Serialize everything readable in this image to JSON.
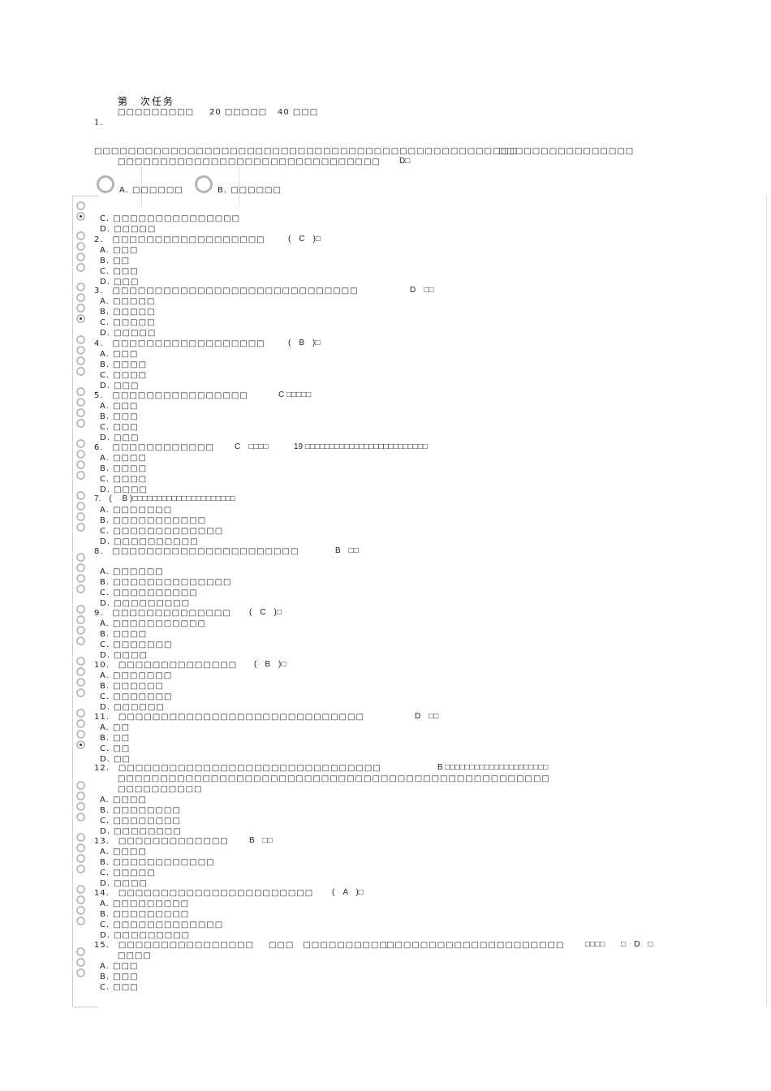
{
  "header": {
    "title": "第　次任务",
    "subtitle": "□□□□□□□□□",
    "total_questions": "20 □□□□□",
    "total_score": "40 □□□",
    "q1_number": "1."
  },
  "q1": {
    "text_line1": "□□□□□□□□□□□□□□□□□□□□□□□□□□□□□□□□□□□□□□□□□□□□□□□□□□",
    "text_line1b": "□□□□□□□□□□□□□□□□",
    "text_line2": "□□□□□□□□□□□□□□□□□□□□□□□□□□□□□□□",
    "answer": "D□",
    "opt_a": "A. □□□□□□",
    "opt_b": "B. □□□□□□",
    "opt_c": "C. □□□□□□□□□□□□□□□",
    "opt_d": "D. □□□□□"
  },
  "q2": {
    "text": "2.　□□□□□□□□□□□□□□□□□□",
    "answer": "(　C　)□",
    "a": "A. □□□",
    "b": "B. □□",
    "c": "C. □□□",
    "d": "D. □□□"
  },
  "q3": {
    "text": "3.　□□□□□□□□□□□□□□□□□□□□□□□□□□□□□",
    "answer": "D　□□",
    "a": "A. □□□□□",
    "b": "B. □□□□□",
    "c": "C. □□□□□",
    "d": "D. □□□□□"
  },
  "q4": {
    "text": "4.　□□□□□□□□□□□□□□□□□□",
    "answer": "(　B　)□",
    "a": "A. □□□",
    "b": "B. □□□□",
    "c": "C. □□□□",
    "d": "D. □□□"
  },
  "q5": {
    "text": "5.　□□□□□□□□□□□□□□□□",
    "answer": "C □□□□□",
    "a": "A. □□□",
    "b": "B. □□□",
    "c": "C. □□□",
    "d": "D. □□□"
  },
  "q6": {
    "text": "6.　□□□□□□□□□□□□",
    "answer": "C　□□□□",
    "extra": "19 □□□□□□□□□□□□□□□□□□□□□□□□□",
    "a": "A. □□□□",
    "b": "B. □□□□",
    "c": "C. □□□□",
    "d": "D. □□□□"
  },
  "q7": {
    "text": "7.　(　 B )□□□□□□□□□□□□□□□□□□□□□",
    "a": "A. □□□□□□□",
    "b": "B. □□□□□□□□□□□",
    "c": "C. □□□□□□□□□□□□□",
    "d": "D. □□□□□□□□□□"
  },
  "q8": {
    "text": "8.　□□□□□□□□□□□□□□□□□□□□□□",
    "answer": "B　□□",
    "a": "A. □□□□□□",
    "b": "B. □□□□□□□□□□□□□□",
    "c": "C. □□□□□□□□□□",
    "d": "D. □□□□□□□□□"
  },
  "q9": {
    "text": "9.　□□□□□□□□□□□□□□",
    "answer": "(　C　)□",
    "a": "A. □□□□□□□□□□□",
    "b": "B. □□□□",
    "c": "C. □□□□□□□",
    "d": "D. □□□□"
  },
  "q10": {
    "text": "10.　□□□□□□□□□□□□□□",
    "answer": "(　B　)□",
    "a": "A. □□□□□□□",
    "b": "B. □□□□□□",
    "c": "C. □□□□□□□",
    "d": "D. □□□□□□"
  },
  "q11": {
    "text": "11.　□□□□□□□□□□□□□□□□□□□□□□□□□□□□□",
    "answer": "D　□□",
    "a": "A. □□",
    "b": "B. □□",
    "c": "C. □□",
    "d": "D. □□"
  },
  "q12": {
    "text": "12.　□□□□□□□□□□□□□□□□□□□□□□□□□□□□□□□",
    "answer": "B □□□□□□□□□□□□□□□□□□□□□",
    "line2": "□□□□□□□□□□□□□□□□□□□□□□□□□□□□□□□□□□□□□□□□□□□□□□□□□□□",
    "line3": "□□□□□□□□□□",
    "a": "A. □□□□",
    "b": "B. □□□□□□□□",
    "c": "C. □□□□□□□□",
    "d": "D. □□□□□□□□"
  },
  "q13": {
    "text": "13.　□□□□□□□□□□□□□",
    "answer": "B　□□",
    "a": "A. □□□□",
    "b": "B. □□□□□□□□□□□□",
    "c": "C. □□□□□",
    "d": "D. □□□□"
  },
  "q14": {
    "text": "14.　□□□□□□□□□□□□□□□□□□□□□□□",
    "answer": "(　A　)□",
    "a": "A. □□□□□□□□□",
    "b": "B. □□□□□□□□□",
    "c": "C. □□□□□□□□□□□□□",
    "d": "D. □□□□□□□□□"
  },
  "q15": {
    "text": "15.　□□□□□□□□□□□□□□□□",
    "mid1": "□□□　□□□□□□□□□□",
    "mid2": "□□□□□□□□□□□□□□□□□□□□□",
    "tail": "□□□□　　□　D　□",
    "line2": "□□□□",
    "a": "A. □□□",
    "b": "B. □□□",
    "c": "C. □□□"
  }
}
